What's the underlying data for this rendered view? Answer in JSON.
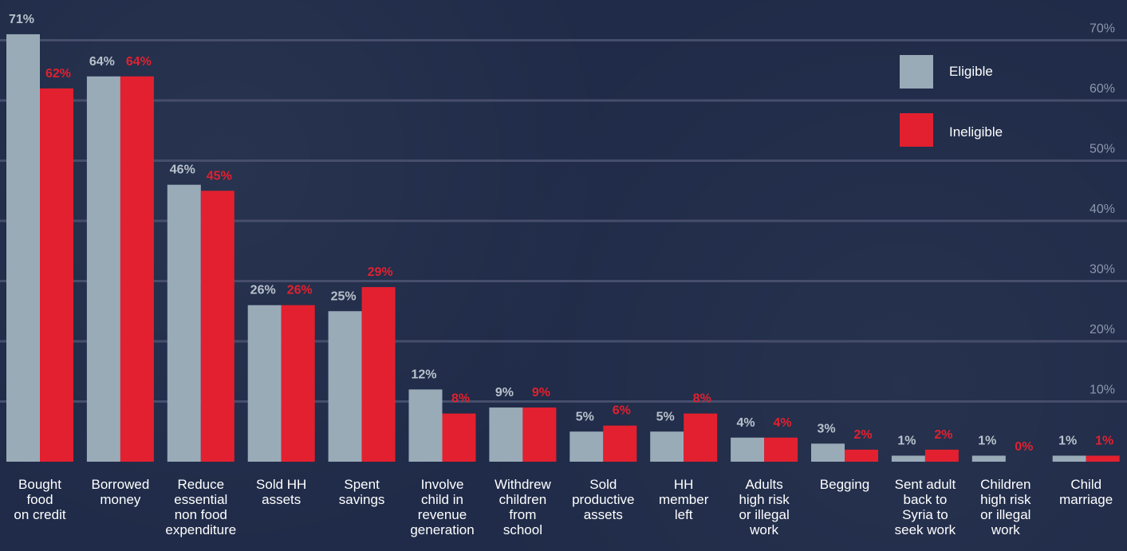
{
  "chart_data": {
    "type": "bar",
    "title": "",
    "xlabel": "",
    "ylabel": "",
    "ylim": [
      0,
      72
    ],
    "yticks": [
      "10%",
      "20%",
      "30%",
      "40%",
      "50%",
      "60%",
      "70%"
    ],
    "ytick_values": [
      10,
      20,
      30,
      40,
      50,
      60,
      70
    ],
    "grid": true,
    "legend_position": "top-right",
    "categories": [
      [
        "Bought",
        "food",
        "on credit"
      ],
      [
        "Borrowed",
        "money"
      ],
      [
        "Reduce",
        "essential",
        "non food",
        "expenditure"
      ],
      [
        "Sold HH",
        "assets"
      ],
      [
        "Spent",
        "savings"
      ],
      [
        "Involve",
        "child in",
        "revenue",
        "generation"
      ],
      [
        "Withdrew",
        "children",
        "from",
        "school"
      ],
      [
        "Sold",
        "productive",
        "assets"
      ],
      [
        "HH",
        "member",
        "left"
      ],
      [
        "Adults",
        "high risk",
        "or illegal",
        "work"
      ],
      [
        "Begging"
      ],
      [
        "Sent adult",
        "back to",
        "Syria to",
        "seek work"
      ],
      [
        "Children",
        "high risk",
        "or illegal",
        "work"
      ],
      [
        "Child",
        "marriage"
      ]
    ],
    "series": [
      {
        "name": "Eligible",
        "color": "#9aabb8",
        "values": [
          71,
          64,
          46,
          26,
          25,
          12,
          9,
          5,
          5,
          4,
          3,
          1,
          1,
          1
        ],
        "labels": [
          "71%",
          "64%",
          "46%",
          "26%",
          "25%",
          "12%",
          "9%",
          "5%",
          "5%",
          "4%",
          "3%",
          "1%",
          "1%",
          "1%"
        ]
      },
      {
        "name": "Ineligible",
        "color": "#e3202f",
        "values": [
          62,
          64,
          45,
          26,
          29,
          8,
          9,
          6,
          8,
          4,
          2,
          2,
          0,
          1
        ],
        "labels": [
          "62%",
          "64%",
          "45%",
          "26%",
          "29%",
          "8%",
          "9%",
          "6%",
          "8%",
          "4%",
          "2%",
          "2%",
          "0%",
          "1%"
        ]
      }
    ]
  },
  "colors": {
    "background": "#1f2b48",
    "gridline": "#4a5270",
    "tick_text": "#8d97ad",
    "category_text": "#ffffff",
    "eligible_label": "#b8c2cc",
    "ineligible_label": "#e3202f"
  }
}
